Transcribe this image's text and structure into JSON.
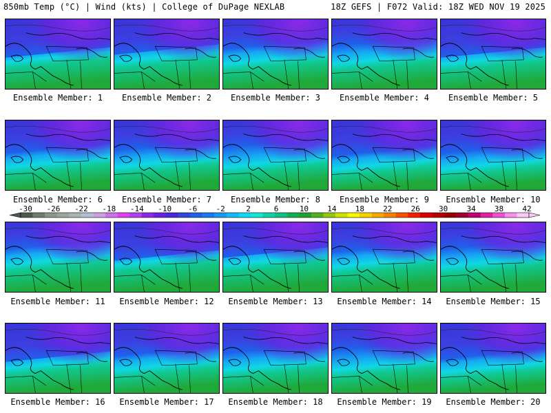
{
  "header": {
    "left": "850mb Temp (°C) | Wind (kts) | College of DuPage NEXLAB",
    "right": "18Z GEFS | F072 Valid: 18Z WED NOV 19 2025"
  },
  "panels": [
    {
      "label": "Ensemble Member: 1"
    },
    {
      "label": "Ensemble Member: 2"
    },
    {
      "label": "Ensemble Member: 3"
    },
    {
      "label": "Ensemble Member: 4"
    },
    {
      "label": "Ensemble Member: 5"
    },
    {
      "label": "Ensemble Member: 6"
    },
    {
      "label": "Ensemble Member: 7"
    },
    {
      "label": "Ensemble Member: 8"
    },
    {
      "label": "Ensemble Member: 9"
    },
    {
      "label": "Ensemble Member: 10"
    },
    {
      "label": "Ensemble Member: 11"
    },
    {
      "label": "Ensemble Member: 12"
    },
    {
      "label": "Ensemble Member: 13"
    },
    {
      "label": "Ensemble Member: 14"
    },
    {
      "label": "Ensemble Member: 15"
    },
    {
      "label": "Ensemble Member: 16"
    },
    {
      "label": "Ensemble Member: 17"
    },
    {
      "label": "Ensemble Member: 18"
    },
    {
      "label": "Ensemble Member: 19"
    },
    {
      "label": "Ensemble Member: 20"
    }
  ],
  "colorbar": {
    "ticks": [
      "-30",
      "-26",
      "-22",
      "-18",
      "-14",
      "-10",
      "-6",
      "-2",
      "2",
      "6",
      "10",
      "14",
      "18",
      "22",
      "26",
      "30",
      "34",
      "38",
      "42"
    ],
    "colors": [
      "#4d5a4d",
      "#6f7d70",
      "#8a968a",
      "#9aa59c",
      "#a9b3b0",
      "#b0bfd8",
      "#c8a0e0",
      "#d070e8",
      "#e040f0",
      "#b040f0",
      "#8a28e8",
      "#6a20e0",
      "#4828d8",
      "#3048d8",
      "#2060e8",
      "#1c78f0",
      "#1898f0",
      "#18b8f8",
      "#10d8f8",
      "#10e8d8",
      "#10d0a8",
      "#10c080",
      "#10b050",
      "#20a030",
      "#50b020",
      "#90c810",
      "#d0e000",
      "#f8f800",
      "#f8d000",
      "#f8a800",
      "#f88000",
      "#f85000",
      "#f02000",
      "#d80000",
      "#b80000",
      "#980000",
      "#a00030",
      "#c00070",
      "#e020a0",
      "#f050d0",
      "#f890f0",
      "#fcc8f8"
    ]
  }
}
